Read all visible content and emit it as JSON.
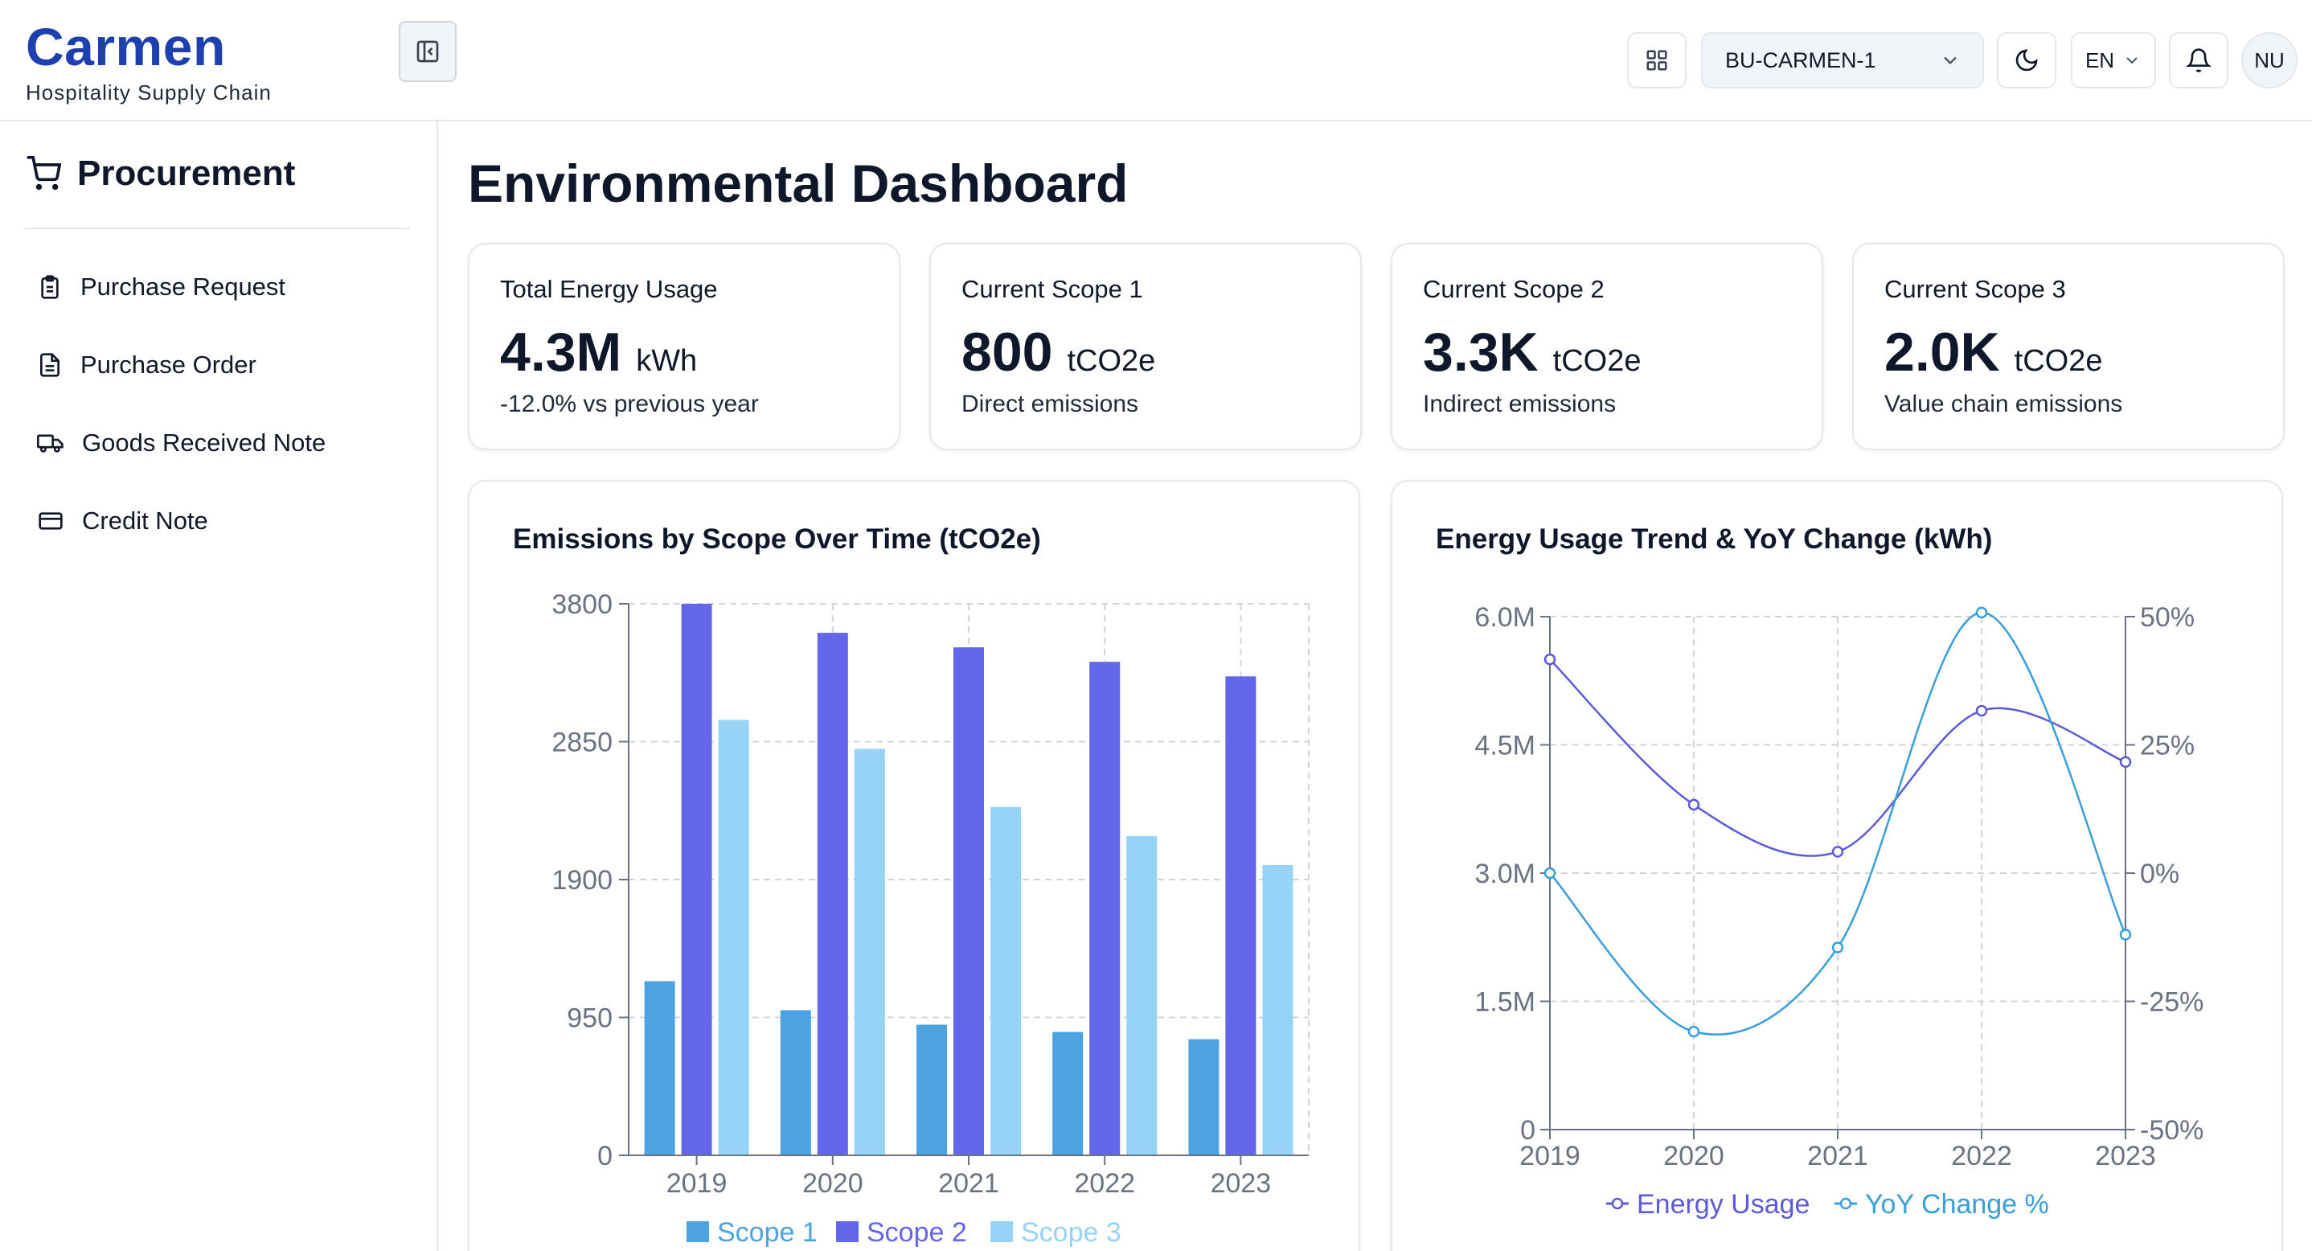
{
  "header": {
    "brand": "Carmen",
    "subtitle": "Hospitality Supply Chain",
    "business_unit": "BU-CARMEN-1",
    "language": "EN",
    "avatar_initials": "NU",
    "icons": [
      "grid-icon",
      "chevron-down-icon",
      "moon-icon",
      "bell-icon"
    ]
  },
  "sidebar": {
    "title": "Procurement",
    "items": [
      {
        "label": "Purchase Request",
        "icon": "clipboard-icon"
      },
      {
        "label": "Purchase Order",
        "icon": "document-icon"
      },
      {
        "label": "Goods Received Note",
        "icon": "truck-icon"
      },
      {
        "label": "Credit Note",
        "icon": "credit-card-icon"
      }
    ]
  },
  "main": {
    "title": "Environmental Dashboard",
    "stats": [
      {
        "label": "Total Energy Usage",
        "value": "4.3M",
        "unit": "kWh",
        "desc": "-12.0% vs previous year"
      },
      {
        "label": "Current Scope 1",
        "value": "800",
        "unit": "tCO2e",
        "desc": "Direct emissions"
      },
      {
        "label": "Current Scope 2",
        "value": "3.3K",
        "unit": "tCO2e",
        "desc": "Indirect emissions"
      },
      {
        "label": "Current Scope 3",
        "value": "2.0K",
        "unit": "tCO2e",
        "desc": "Value chain emissions"
      }
    ]
  },
  "chart_data": [
    {
      "type": "bar",
      "title": "Emissions by Scope Over Time (tCO2e)",
      "categories": [
        "2019",
        "2020",
        "2021",
        "2022",
        "2023"
      ],
      "series": [
        {
          "name": "Scope 1",
          "color": "#4da3e0",
          "values": [
            1200,
            1000,
            900,
            850,
            800
          ]
        },
        {
          "name": "Scope 2",
          "color": "#6366e8",
          "values": [
            3800,
            3600,
            3500,
            3400,
            3300
          ]
        },
        {
          "name": "Scope 3",
          "color": "#96d3f7",
          "values": [
            3000,
            2800,
            2400,
            2200,
            2000
          ]
        }
      ],
      "yticks": [
        0,
        950,
        1900,
        2850,
        3800
      ],
      "ylim": [
        0,
        3800
      ],
      "grid": true,
      "legend": "bottom"
    },
    {
      "type": "line",
      "title": "Energy Usage Trend & YoY Change (kWh)",
      "x": [
        "2019",
        "2020",
        "2021",
        "2022",
        "2023"
      ],
      "series": [
        {
          "name": "Energy Usage",
          "axis": "left",
          "color": "#5b5bd6",
          "values": [
            5500000,
            3800000,
            3250000,
            4900000,
            4300000
          ]
        },
        {
          "name": "YoY Change %",
          "axis": "right",
          "color": "#3a9fd8",
          "values": [
            0,
            -30.9,
            -14.5,
            50.8,
            -12.0
          ]
        }
      ],
      "y_left": {
        "ylim": [
          0,
          6000000
        ],
        "ticks": [
          "0",
          "1.5M",
          "3.0M",
          "4.5M",
          "6.0M"
        ]
      },
      "y_right": {
        "ylim": [
          -50,
          50
        ],
        "ticks": [
          "-50%",
          "-25%",
          "0%",
          "25%",
          "50%"
        ]
      },
      "grid": true,
      "legend": "bottom"
    }
  ]
}
